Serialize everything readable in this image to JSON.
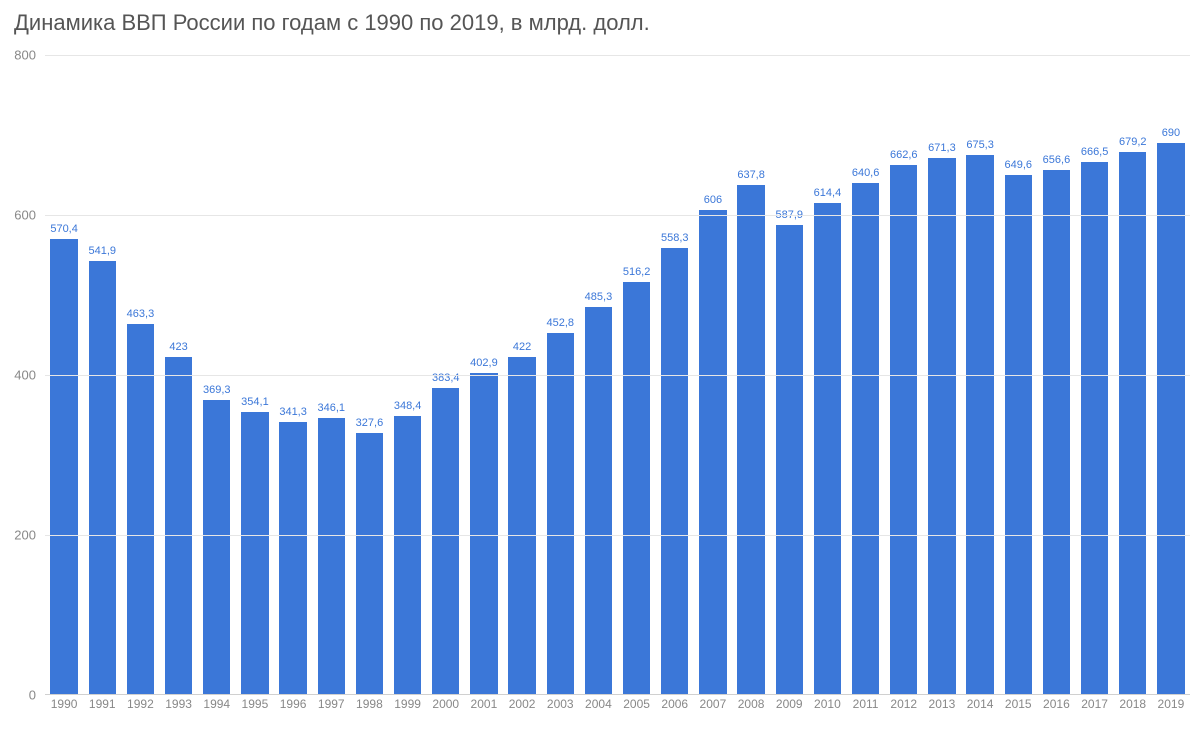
{
  "chart": {
    "type": "bar",
    "title": "Динамика ВВП России по годам с 1990 по 2019, в млрд. долл.",
    "title_fontsize": 22,
    "title_color": "#555555",
    "background_color": "#ffffff",
    "bar_color": "#3b77d8",
    "label_color": "#3b77d8",
    "label_fontsize": 11,
    "axis_text_color": "#888888",
    "grid_color": "#e6e6e6",
    "ylim": [
      0,
      800
    ],
    "yticks": [
      0,
      200,
      400,
      600,
      800
    ],
    "bar_width_ratio": 0.72,
    "categories": [
      "1990",
      "1991",
      "1992",
      "1993",
      "1994",
      "1995",
      "1996",
      "1997",
      "1998",
      "1999",
      "2000",
      "2001",
      "2002",
      "2003",
      "2004",
      "2005",
      "2006",
      "2007",
      "2008",
      "2009",
      "2010",
      "2011",
      "2012",
      "2013",
      "2014",
      "2015",
      "2016",
      "2017",
      "2018",
      "2019"
    ],
    "values": [
      570.4,
      541.9,
      463.3,
      423,
      369.3,
      354.1,
      341.3,
      346.1,
      327.6,
      348.4,
      383.4,
      402.9,
      422,
      452.8,
      485.3,
      516.2,
      558.3,
      606,
      637.8,
      587.9,
      614.4,
      640.6,
      662.6,
      671.3,
      675.3,
      649.6,
      656.6,
      666.5,
      679.2,
      690
    ],
    "value_labels": [
      "570,4",
      "541,9",
      "463,3",
      "423",
      "369,3",
      "354,1",
      "341,3",
      "346,1",
      "327,6",
      "348,4",
      "383,4",
      "402,9",
      "422",
      "452,8",
      "485,3",
      "516,2",
      "558,3",
      "606",
      "637,8",
      "587,9",
      "614,4",
      "640,6",
      "662,6",
      "671,3",
      "675,3",
      "649,6",
      "656,6",
      "666,5",
      "679,2",
      "690"
    ]
  }
}
